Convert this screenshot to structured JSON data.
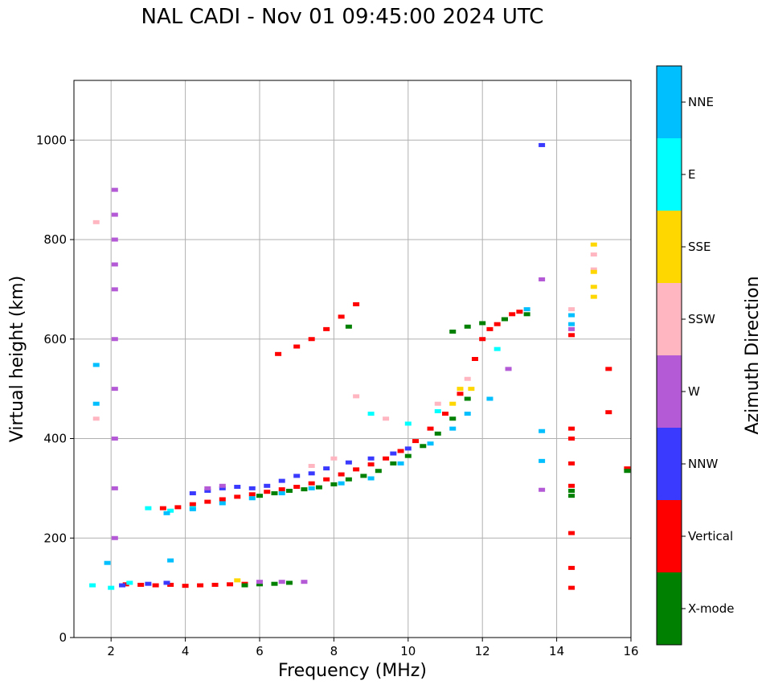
{
  "chart_data": {
    "type": "scatter",
    "title": "NAL CADI - Nov 01 09:45:00 2024 UTC",
    "xlabel": "Frequency (MHz)",
    "ylabel": "Virtual height (km)",
    "xlim": [
      1,
      16
    ],
    "ylim": [
      0,
      1120
    ],
    "xticks": [
      2,
      4,
      6,
      8,
      10,
      12,
      14,
      16
    ],
    "yticks": [
      0,
      200,
      400,
      600,
      800,
      1000
    ],
    "grid": true,
    "colorbar": {
      "label": "Azimuth Direction",
      "categories": [
        {
          "name": "X-mode",
          "color": "#008000"
        },
        {
          "name": "Vertical",
          "color": "#ff0000"
        },
        {
          "name": "NNW",
          "color": "#3a3aff"
        },
        {
          "name": "W",
          "color": "#b45ad6"
        },
        {
          "name": "SSW",
          "color": "#ffb6c1"
        },
        {
          "name": "SSE",
          "color": "#ffd700"
        },
        {
          "name": "E",
          "color": "#00ffff"
        },
        {
          "name": "NNE",
          "color": "#00bfff"
        }
      ]
    },
    "series": [
      {
        "name": "Vertical",
        "points": [
          [
            2.4,
            107
          ],
          [
            2.8,
            106
          ],
          [
            3.2,
            105
          ],
          [
            3.6,
            106
          ],
          [
            4.0,
            104
          ],
          [
            4.4,
            105
          ],
          [
            4.8,
            106
          ],
          [
            5.2,
            107
          ],
          [
            5.6,
            108
          ],
          [
            6.0,
            109
          ],
          [
            3.4,
            260
          ],
          [
            3.8,
            262
          ],
          [
            4.2,
            268
          ],
          [
            4.6,
            273
          ],
          [
            5.0,
            278
          ],
          [
            5.4,
            283
          ],
          [
            5.8,
            288
          ],
          [
            6.2,
            293
          ],
          [
            6.6,
            298
          ],
          [
            7.0,
            303
          ],
          [
            7.4,
            310
          ],
          [
            7.8,
            318
          ],
          [
            8.2,
            328
          ],
          [
            8.6,
            338
          ],
          [
            9.0,
            348
          ],
          [
            9.4,
            360
          ],
          [
            9.8,
            375
          ],
          [
            10.2,
            395
          ],
          [
            10.6,
            420
          ],
          [
            11.0,
            450
          ],
          [
            11.4,
            490
          ],
          [
            11.8,
            560
          ],
          [
            12.0,
            600
          ],
          [
            12.2,
            620
          ],
          [
            12.4,
            630
          ],
          [
            12.6,
            640
          ],
          [
            12.8,
            650
          ],
          [
            13.0,
            655
          ],
          [
            6.5,
            570
          ],
          [
            7.0,
            585
          ],
          [
            7.4,
            600
          ],
          [
            7.8,
            620
          ],
          [
            8.2,
            645
          ],
          [
            8.6,
            670
          ],
          [
            14.4,
            100
          ],
          [
            14.4,
            140
          ],
          [
            14.4,
            210
          ],
          [
            14.4,
            305
          ],
          [
            14.4,
            350
          ],
          [
            14.4,
            400
          ],
          [
            14.4,
            420
          ],
          [
            14.4,
            608
          ],
          [
            15.4,
            540
          ],
          [
            15.4,
            453
          ],
          [
            15.9,
            340
          ]
        ]
      },
      {
        "name": "X-mode",
        "points": [
          [
            5.6,
            105
          ],
          [
            6.0,
            107
          ],
          [
            6.4,
            108
          ],
          [
            6.8,
            110
          ],
          [
            6.0,
            285
          ],
          [
            6.4,
            290
          ],
          [
            6.8,
            295
          ],
          [
            7.2,
            298
          ],
          [
            7.6,
            302
          ],
          [
            8.0,
            308
          ],
          [
            8.4,
            318
          ],
          [
            8.8,
            325
          ],
          [
            9.2,
            335
          ],
          [
            9.6,
            350
          ],
          [
            10.0,
            365
          ],
          [
            10.4,
            385
          ],
          [
            10.8,
            410
          ],
          [
            11.2,
            440
          ],
          [
            11.6,
            480
          ],
          [
            11.2,
            615
          ],
          [
            11.6,
            625
          ],
          [
            12.0,
            632
          ],
          [
            12.6,
            640
          ],
          [
            13.2,
            650
          ],
          [
            8.4,
            625
          ],
          [
            14.4,
            295
          ],
          [
            14.4,
            285
          ],
          [
            15.9,
            335
          ]
        ]
      },
      {
        "name": "NNW",
        "points": [
          [
            4.2,
            290
          ],
          [
            4.6,
            295
          ],
          [
            5.0,
            300
          ],
          [
            5.4,
            303
          ],
          [
            5.8,
            300
          ],
          [
            6.2,
            305
          ],
          [
            6.6,
            315
          ],
          [
            7.0,
            325
          ],
          [
            7.4,
            330
          ],
          [
            7.8,
            340
          ],
          [
            8.4,
            352
          ],
          [
            9.0,
            360
          ],
          [
            9.6,
            370
          ],
          [
            10.0,
            380
          ],
          [
            2.3,
            105
          ],
          [
            3.0,
            108
          ],
          [
            3.5,
            110
          ],
          [
            13.6,
            990
          ]
        ]
      },
      {
        "name": "W",
        "points": [
          [
            2.1,
            900
          ],
          [
            2.1,
            850
          ],
          [
            2.1,
            800
          ],
          [
            2.1,
            750
          ],
          [
            2.1,
            700
          ],
          [
            2.1,
            600
          ],
          [
            2.1,
            500
          ],
          [
            2.1,
            400
          ],
          [
            2.1,
            300
          ],
          [
            2.1,
            200
          ],
          [
            6.0,
            112
          ],
          [
            6.6,
            112
          ],
          [
            7.2,
            112
          ],
          [
            4.6,
            300
          ],
          [
            5.0,
            305
          ],
          [
            13.6,
            720
          ],
          [
            13.6,
            297
          ],
          [
            14.4,
            620
          ],
          [
            12.7,
            540
          ]
        ]
      },
      {
        "name": "SSW",
        "points": [
          [
            7.4,
            345
          ],
          [
            8.0,
            360
          ],
          [
            8.6,
            485
          ],
          [
            9.4,
            440
          ],
          [
            10.8,
            470
          ],
          [
            11.6,
            520
          ],
          [
            14.4,
            660
          ],
          [
            15.0,
            740
          ],
          [
            15.0,
            770
          ],
          [
            1.6,
            835
          ],
          [
            1.6,
            440
          ]
        ]
      },
      {
        "name": "SSE",
        "points": [
          [
            11.2,
            470
          ],
          [
            11.4,
            500
          ],
          [
            11.7,
            500
          ],
          [
            5.4,
            115
          ],
          [
            15.0,
            705
          ],
          [
            15.0,
            685
          ],
          [
            15.0,
            735
          ],
          [
            15.0,
            790
          ]
        ]
      },
      {
        "name": "E",
        "points": [
          [
            1.5,
            105
          ],
          [
            3.0,
            260
          ],
          [
            3.6,
            255
          ],
          [
            4.2,
            260
          ],
          [
            9.0,
            450
          ],
          [
            10.0,
            430
          ],
          [
            10.8,
            455
          ],
          [
            12.4,
            580
          ],
          [
            2.0,
            100
          ],
          [
            2.5,
            110
          ]
        ]
      },
      {
        "name": "NNE",
        "points": [
          [
            3.5,
            250
          ],
          [
            4.2,
            258
          ],
          [
            5.0,
            270
          ],
          [
            5.8,
            280
          ],
          [
            6.6,
            290
          ],
          [
            7.4,
            300
          ],
          [
            8.2,
            310
          ],
          [
            9.0,
            320
          ],
          [
            9.8,
            350
          ],
          [
            10.6,
            390
          ],
          [
            11.2,
            420
          ],
          [
            11.6,
            450
          ],
          [
            12.2,
            480
          ],
          [
            13.2,
            660
          ],
          [
            13.6,
            415
          ],
          [
            13.6,
            355
          ],
          [
            14.4,
            630
          ],
          [
            14.4,
            648
          ],
          [
            1.6,
            548
          ],
          [
            1.6,
            470
          ],
          [
            3.6,
            155
          ],
          [
            1.9,
            150
          ]
        ]
      }
    ]
  }
}
